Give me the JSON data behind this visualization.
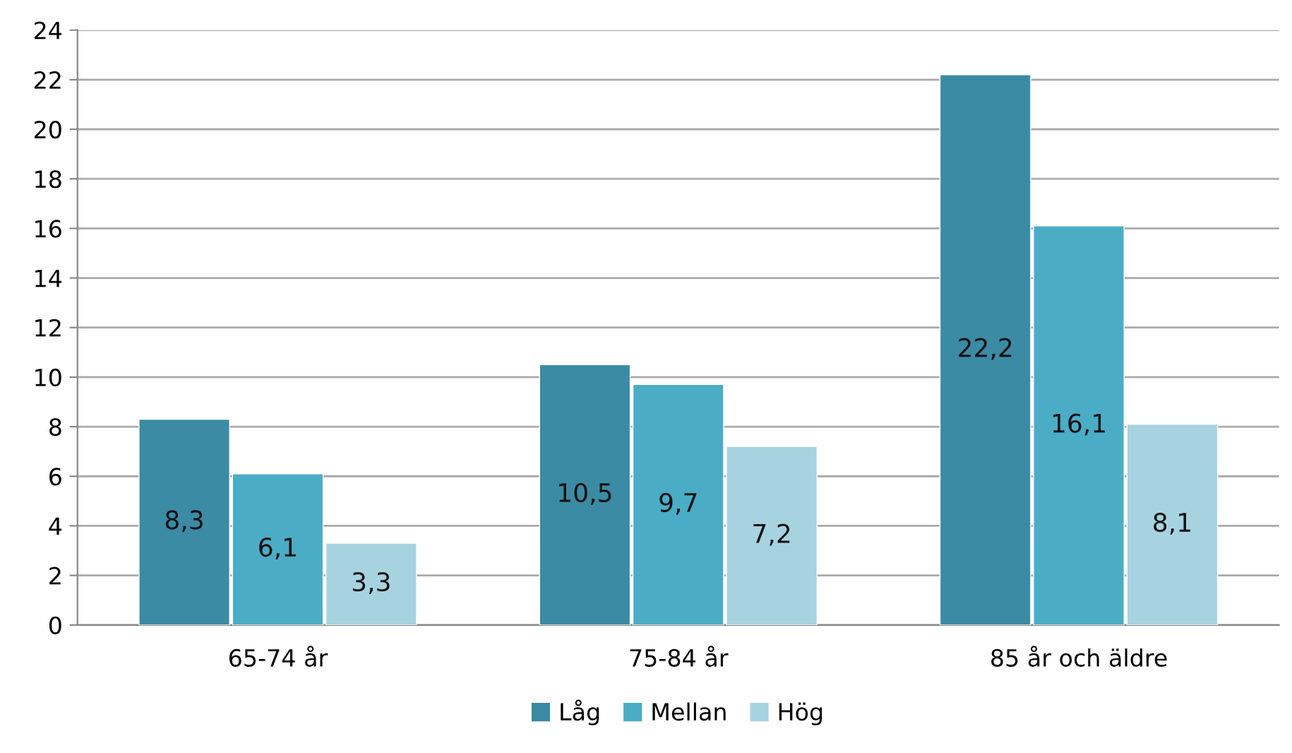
{
  "chart_data": {
    "type": "bar",
    "categories": [
      "65-74 år",
      "75-84 år",
      "85 år och äldre"
    ],
    "series": [
      {
        "name": "Låg",
        "color": "#3b8ba4",
        "values": [
          8.3,
          10.5,
          22.2
        ],
        "value_labels": [
          "8,3",
          "10,5",
          "22,2"
        ]
      },
      {
        "name": "Mellan",
        "color": "#4bacc6",
        "values": [
          6.1,
          9.7,
          16.1
        ],
        "value_labels": [
          "6,1",
          "9,7",
          "16,1"
        ]
      },
      {
        "name": "Hög",
        "color": "#a7d3e1",
        "values": [
          3.3,
          7.2,
          8.1
        ],
        "value_labels": [
          "3,3",
          "7,2",
          "8,1"
        ]
      }
    ],
    "ylim": [
      0,
      24
    ],
    "yticks": [
      0,
      2,
      4,
      6,
      8,
      10,
      12,
      14,
      16,
      18,
      20,
      22,
      24
    ],
    "grid": "y",
    "legend": "bottom"
  }
}
